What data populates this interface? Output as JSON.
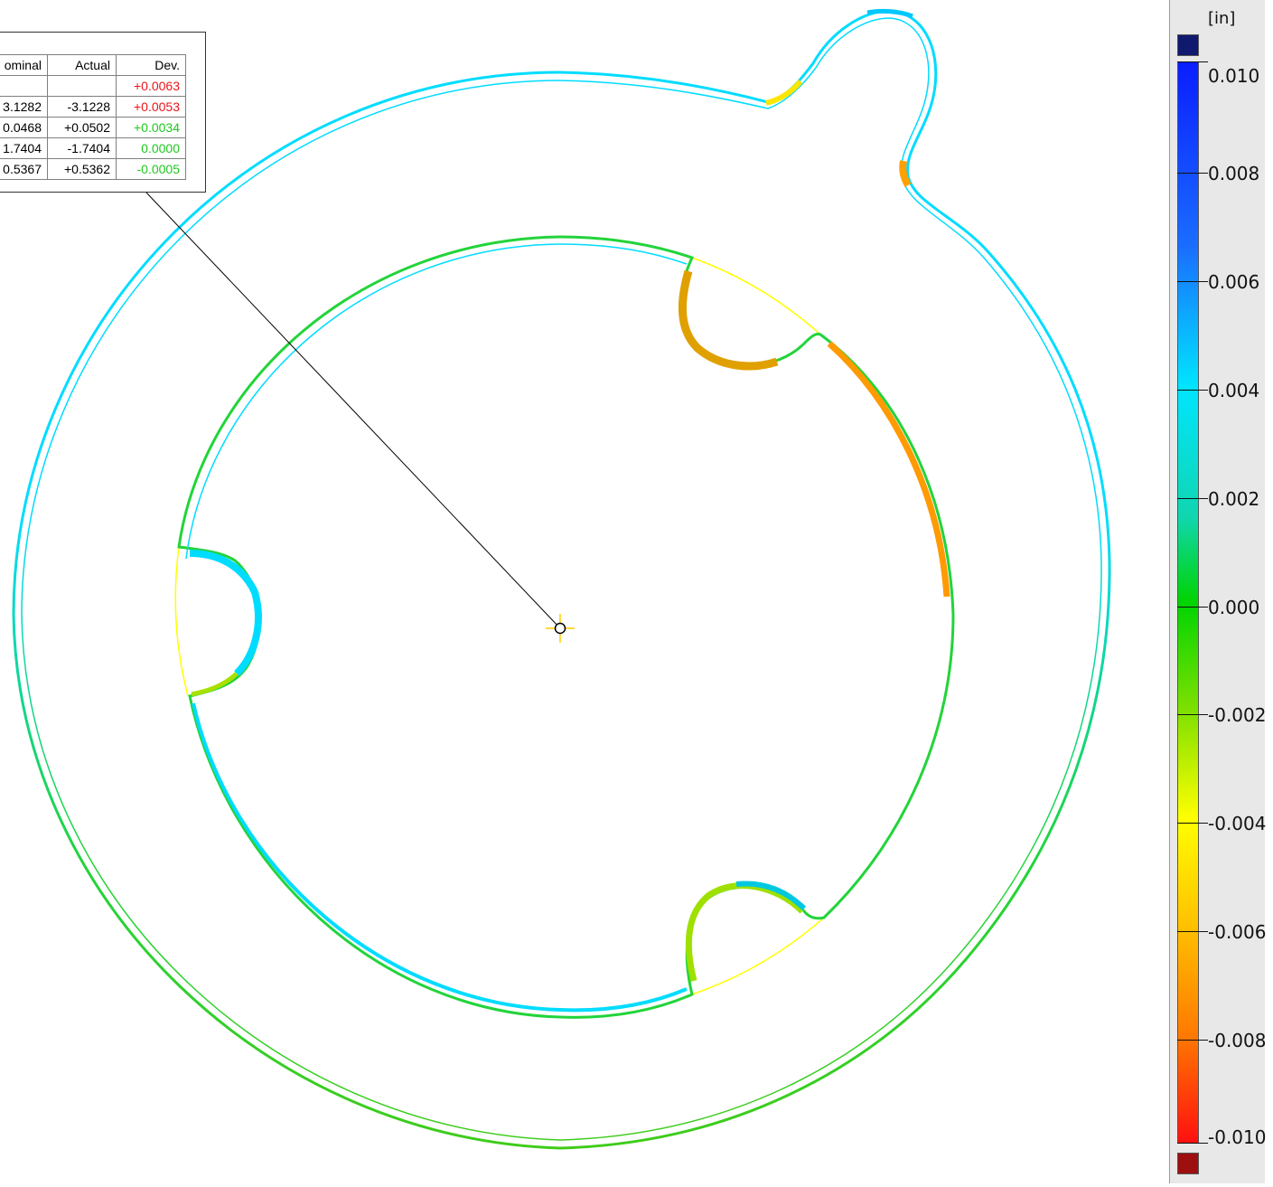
{
  "deviation_table": {
    "headers": [
      "ominal",
      "Actual",
      "Dev."
    ],
    "rows": [
      {
        "nominal": "",
        "actual": "",
        "dev": "+0.0063",
        "dev_color": "#e8141b"
      },
      {
        "nominal": "3.1282",
        "actual": "-3.1228",
        "dev": "+0.0053",
        "dev_color": "#e8141b"
      },
      {
        "nominal": "0.0468",
        "actual": "+0.0502",
        "dev": "+0.0034",
        "dev_color": "#1ec81e"
      },
      {
        "nominal": "1.7404",
        "actual": "-1.7404",
        "dev": "0.0000",
        "dev_color": "#1ec81e"
      },
      {
        "nominal": "0.5367",
        "actual": "+0.5362",
        "dev": "-0.0005",
        "dev_color": "#1ec81e"
      }
    ]
  },
  "legend": {
    "unit": "[in]",
    "ticks": [
      "0.010",
      "0.008",
      "0.006",
      "0.004",
      "0.002",
      "0.000",
      "-0.002",
      "-0.004",
      "-0.006",
      "-0.008",
      "-0.010"
    ],
    "over_color": "#0f1a6e",
    "under_color": "#9e0f0f"
  },
  "colors": {
    "nominal_outline": "#ffff00",
    "positive_deviation": "#00dcff",
    "near_zero_deviation": "#22d43a",
    "negative_deviation": "#ff9a00",
    "leader_line": "#000000"
  }
}
